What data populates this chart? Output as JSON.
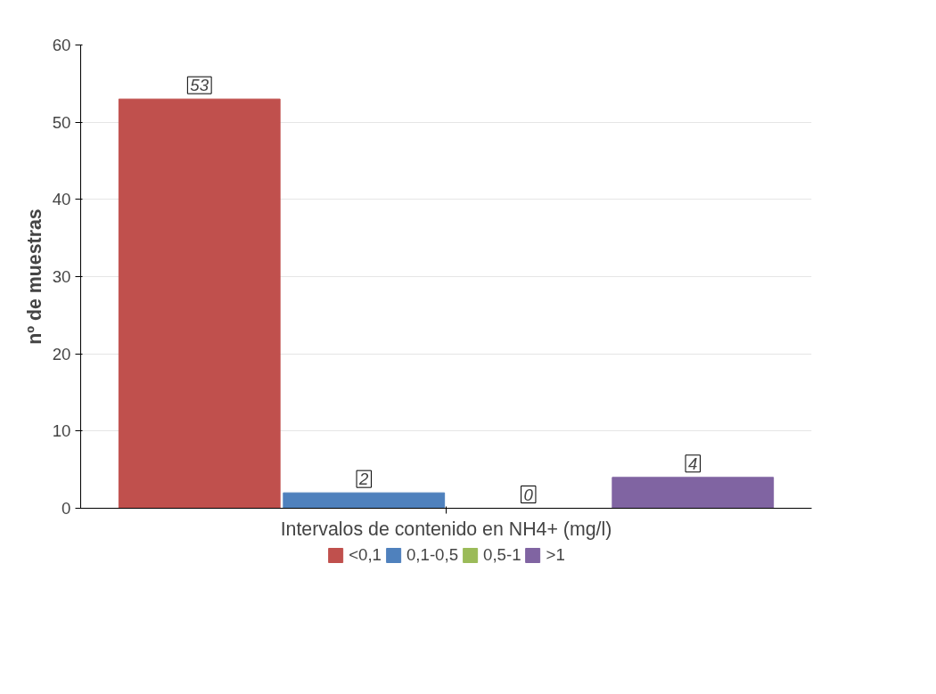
{
  "chart_data": {
    "type": "bar",
    "xlabel": "Intervalos de contenido en NH4+ (mg/l)",
    "ylabel": "nº de muestras",
    "categories": [
      null
    ],
    "series": [
      {
        "name": "<0,1",
        "color": "#c0504d",
        "values": [
          53
        ]
      },
      {
        "name": "0,1-0,5",
        "color": "#4f81bd",
        "values": [
          2
        ]
      },
      {
        "name": "0,5-1",
        "color": "#9bbb59",
        "values": [
          0
        ]
      },
      {
        "name": ">1",
        "color": "#8064a2",
        "values": [
          4
        ]
      }
    ],
    "ylim": [
      0,
      60
    ],
    "yticks": [
      0,
      10,
      20,
      30,
      40,
      50,
      60
    ],
    "grid": "y",
    "legend": "bottom",
    "data_labels": true
  }
}
